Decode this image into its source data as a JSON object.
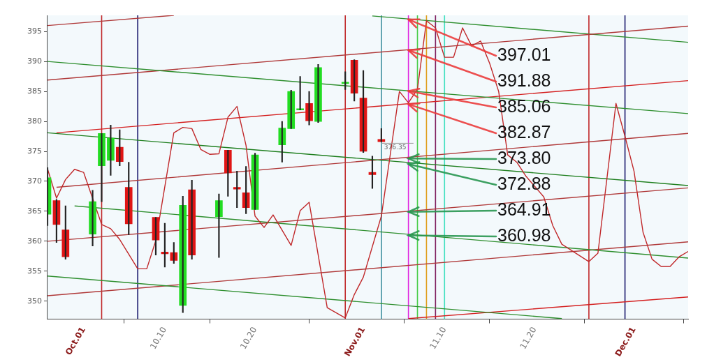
{
  "chart_data": {
    "type": "candlestick",
    "x": [
      "--09-27",
      "--09-28",
      "--09-29",
      "--10-02",
      "--10-03",
      "--10-04",
      "--10-05",
      "--10-06",
      "--10-09",
      "--10-10",
      "--10-11",
      "--10-12",
      "--10-13",
      "--10-16",
      "--10-17",
      "--10-18",
      "--10-19",
      "--10-20",
      "--10-23",
      "--10-24",
      "--10-25",
      "--10-26",
      "--10-27",
      "--10-30",
      "--10-31",
      "--11-01",
      "--11-02",
      "--11-03"
    ],
    "ohlc": [
      [
        364.5,
        372.3,
        362.6,
        370.6
      ],
      [
        366.8,
        367,
        359.8,
        362.8
      ],
      [
        361.9,
        365.9,
        357,
        357.4
      ],
      [
        361.2,
        368.5,
        359.2,
        366.6
      ],
      [
        372.6,
        378,
        366.6,
        378
      ],
      [
        373.5,
        379.4,
        371,
        377.2
      ],
      [
        375.7,
        378.6,
        372.6,
        373.3
      ],
      [
        369,
        373.2,
        361.1,
        362.9
      ],
      [
        364,
        364,
        357.7,
        360.2
      ],
      [
        358.2,
        363,
        355.7,
        357.9
      ],
      [
        358.1,
        359.8,
        356.3,
        356.8
      ],
      [
        349.3,
        367.5,
        348.1,
        366
      ],
      [
        368.6,
        370.2,
        357,
        357.7
      ],
      [
        364.1,
        367.9,
        357.3,
        366.8
      ],
      [
        375.2,
        375.2,
        367.5,
        371.4
      ],
      [
        369,
        371.7,
        365.6,
        368.7
      ],
      [
        368.1,
        372.5,
        364.6,
        365.6
      ],
      [
        365.3,
        374.7,
        365.3,
        374.4
      ],
      [
        376.1,
        380,
        373.2,
        378.9
      ],
      [
        378.8,
        385.2,
        378.8,
        385
      ],
      [
        381.9,
        387.5,
        381.9,
        382.1
      ],
      [
        383,
        385,
        379.4,
        380.1
      ],
      [
        380,
        389.5,
        379.8,
        389
      ],
      [
        386.3,
        388.3,
        385.3,
        386.5
      ],
      [
        390.2,
        390.3,
        383.4,
        384.7
      ],
      [
        383.9,
        388.5,
        374.8,
        375
      ],
      [
        371.5,
        374.2,
        368.8,
        371.1
      ],
      [
        377,
        378.8,
        376.6,
        376.6
      ]
    ],
    "colors": [
      "#22dd22",
      "#e01515",
      "#e01515",
      "#22dd22",
      "#22dd22",
      "#22dd22",
      "#e01515",
      "#e01515",
      "#e01515",
      "#e01515",
      "#e01515",
      "#22dd22",
      "#e01515",
      "#22dd22",
      "#e01515",
      "#e01515",
      "#e01515",
      "#22dd22",
      "#22dd22",
      "#22dd22",
      "#22dd22",
      "#e01515",
      "#22dd22",
      "#22dd22",
      "#e01515",
      "#e01515",
      "#e01515",
      "#e01515"
    ],
    "series": [
      {
        "type": "line",
        "color": "#c0282a",
        "x": [
          "--09-27",
          "--09-28",
          "--09-29",
          "--09-30",
          "--10-01",
          "--10-03",
          "--10-04",
          "--10-05",
          "--10-07",
          "--10-08",
          "--10-09",
          "--10-11",
          "--10-12",
          "--10-13",
          "--10-14",
          "--10-15",
          "--10-16",
          "--10-17",
          "--10-18",
          "--10-19",
          "--10-20",
          "--10-21",
          "--10-22",
          "--10-24",
          "--10-25",
          "--10-26",
          "--10-28",
          "--10-30",
          "--10-31",
          "--11-01",
          "--11-03",
          "--11-05",
          "--11-06",
          "--11-07",
          "--11-08",
          "--11-09",
          "--11-10",
          "--11-11",
          "--11-12",
          "--11-13",
          "--11-14",
          "--11-15",
          "--11-16",
          "--11-17",
          "--11-18",
          "--11-19",
          "--11-21",
          "--11-22",
          "--11-23",
          "--11-26",
          "--11-27",
          "--11-29",
          "--11-30",
          "--12-01",
          "--12-02",
          "--12-03",
          "--12-04",
          "--12-05",
          "--12-06",
          "--12-07"
        ],
        "values": [
          372.1,
          367.2,
          370.3,
          372,
          371.5,
          362.8,
          362.1,
          360.3,
          355.4,
          355.4,
          360.1,
          378.1,
          379,
          378.8,
          375.3,
          374.5,
          374.6,
          380.7,
          382.5,
          376,
          364.2,
          362.3,
          364.4,
          359.3,
          365.1,
          366.5,
          348.9,
          347.2,
          351.1,
          354,
          364.2,
          385,
          383.1,
          385.4,
          396.8,
          395.6,
          390.7,
          390.7,
          395.6,
          392.6,
          393.4,
          389.7,
          385,
          374.4,
          373.2,
          370.9,
          367.4,
          362.6,
          359.5,
          356.6,
          358,
          383,
          377.5,
          371.7,
          361.5,
          357,
          355.8,
          355.8,
          357.4,
          358.3
        ]
      },
      {
        "type": "line",
        "color": "#b03a3a",
        "x": [
          "--09-27",
          "--10-11"
        ],
        "values": [
          396,
          397.7
        ]
      },
      {
        "type": "line",
        "color": "#2f8f2f",
        "x": [
          "--09-27",
          "--12-07"
        ],
        "values": [
          390,
          381.3
        ]
      },
      {
        "type": "line",
        "color": "#b03a3a",
        "x": [
          "--09-27",
          "--12-07"
        ],
        "values": [
          386.9,
          395.9
        ]
      },
      {
        "type": "line",
        "color": "#d42020",
        "x": [
          "--09-28",
          "--12-07"
        ],
        "values": [
          378.1,
          386.8
        ]
      },
      {
        "type": "line",
        "color": "#1f7f1f",
        "x": [
          "--09-27",
          "--12-07"
        ],
        "values": [
          378.1,
          369.3
        ]
      },
      {
        "type": "line",
        "color": "#b03a3a",
        "x": [
          "--09-28",
          "--12-07"
        ],
        "values": [
          369,
          378
        ]
      },
      {
        "type": "line",
        "color": "#2f8f2f",
        "x": [
          "--09-30",
          "--12-07"
        ],
        "values": [
          365.9,
          357.2
        ]
      },
      {
        "type": "line",
        "color": "#b03a3a",
        "x": [
          "--09-27",
          "--12-07"
        ],
        "values": [
          360,
          368.9
        ]
      },
      {
        "type": "line",
        "color": "#2f8f2f",
        "x": [
          "--09-27",
          "--11-23"
        ],
        "values": [
          354.2,
          347.1
        ]
      },
      {
        "type": "line",
        "color": "#b03a3a",
        "x": [
          "--09-27",
          "--12-07"
        ],
        "values": [
          350.9,
          359.9
        ]
      },
      {
        "type": "line",
        "color": "#d42020",
        "x": [
          "--11-06",
          "--12-07"
        ],
        "values": [
          347.1,
          350.7
        ]
      },
      {
        "type": "line",
        "color": "#2f8f2f",
        "x": [
          "--11-02",
          "--12-07"
        ],
        "values": [
          397.6,
          393.2
        ]
      }
    ],
    "ref_lines": [
      {
        "axis": "x",
        "value": "--10-03",
        "color": "#c0282a"
      },
      {
        "axis": "x",
        "value": "--10-07",
        "color": "#1a1a6e"
      },
      {
        "axis": "x",
        "value": "--10-30",
        "color": "#c0282a"
      },
      {
        "axis": "x",
        "value": "--11-03",
        "color": "#1a1a6e"
      },
      {
        "axis": "x",
        "value": "--11-03",
        "color": "#66bbbb"
      },
      {
        "axis": "x",
        "value": "--11-06",
        "color": "#e020e0"
      },
      {
        "axis": "x",
        "value": "--11-07",
        "color": "#44cc44"
      },
      {
        "axis": "x",
        "value": "--11-08",
        "color": "#e0a020"
      },
      {
        "axis": "x",
        "value": "--11-09",
        "color": "#802060"
      },
      {
        "axis": "x",
        "value": "--11-10",
        "color": "#40e0c0"
      },
      {
        "axis": "x",
        "value": "--11-26",
        "color": "#c0282a"
      },
      {
        "axis": "x",
        "value": "--11-30",
        "color": "#1a1a6e"
      }
    ],
    "annotations": [
      {
        "text": "376.35",
        "x": "--11-03",
        "y": 376.35
      },
      {
        "text": "397.01",
        "x": "--11-06",
        "y": 397.01
      },
      {
        "text": "391.88",
        "x": "--11-06",
        "y": 391.88
      },
      {
        "text": "385.06",
        "x": "--11-06",
        "y": 385.06
      },
      {
        "text": "382.87",
        "x": "--11-06",
        "y": 382.87
      },
      {
        "text": "373.80",
        "x": "--11-06",
        "y": 373.8
      },
      {
        "text": "372.88",
        "x": "--11-06",
        "y": 372.88
      },
      {
        "text": "364.91",
        "x": "--11-06",
        "y": 364.91
      },
      {
        "text": "360.98",
        "x": "--11-06",
        "y": 360.98
      }
    ],
    "xlim": [
      "--09-27",
      "--12-07"
    ],
    "xticks": [
      {
        "value": "--10-01",
        "label": "Oct.01"
      },
      {
        "value": "--10-10",
        "label": "10.10"
      },
      {
        "value": "--10-20",
        "label": "10.20"
      },
      {
        "value": "--11-01",
        "label": "Nov.01"
      },
      {
        "value": "--11-10",
        "label": "11.10"
      },
      {
        "value": "--11-20",
        "label": "11.20"
      },
      {
        "value": "--12-01",
        "label": "Dec.01"
      }
    ],
    "ylim": [
      347,
      397.7
    ],
    "yticks": [
      350,
      355,
      360,
      365,
      370,
      375,
      380,
      385,
      390,
      395
    ]
  }
}
